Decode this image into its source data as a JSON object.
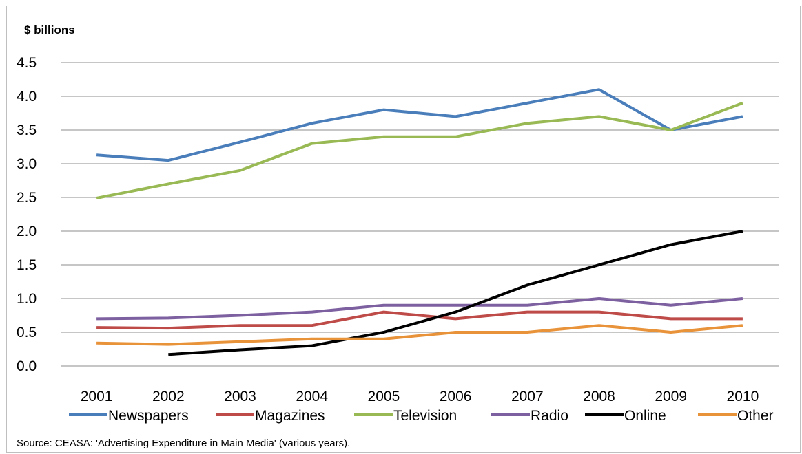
{
  "chart_data": {
    "type": "line",
    "ylabel": "$ billions",
    "ylim": [
      0,
      4.5
    ],
    "yticks": [
      "0.0",
      "0.5",
      "1.0",
      "1.5",
      "2.0",
      "2.5",
      "3.0",
      "3.5",
      "4.0",
      "4.5"
    ],
    "categories": [
      "2001",
      "2002",
      "2003",
      "2004",
      "2005",
      "2006",
      "2007",
      "2008",
      "2009",
      "2010"
    ],
    "grid": true,
    "legend_position": "bottom",
    "series": [
      {
        "name": "Newspapers",
        "color": "#4a7ebb",
        "values": [
          3.13,
          3.05,
          3.32,
          3.6,
          3.8,
          3.7,
          3.9,
          4.1,
          3.5,
          3.7
        ]
      },
      {
        "name": "Magazines",
        "color": "#be4b48",
        "values": [
          0.57,
          0.56,
          0.6,
          0.6,
          0.8,
          0.7,
          0.8,
          0.8,
          0.7,
          0.7
        ]
      },
      {
        "name": "Television",
        "color": "#98b954",
        "values": [
          2.49,
          2.7,
          2.9,
          3.3,
          3.4,
          3.4,
          3.6,
          3.7,
          3.5,
          3.9
        ]
      },
      {
        "name": "Radio",
        "color": "#7d60a0",
        "values": [
          0.7,
          0.71,
          0.75,
          0.8,
          0.9,
          0.9,
          0.9,
          1.0,
          0.9,
          1.0
        ]
      },
      {
        "name": "Online",
        "color": "#000000",
        "values": [
          null,
          0.17,
          0.24,
          0.3,
          0.5,
          0.8,
          1.2,
          1.5,
          1.8,
          2.0
        ]
      },
      {
        "name": "Other",
        "color": "#e8923a",
        "values": [
          0.34,
          0.32,
          0.36,
          0.4,
          0.4,
          0.5,
          0.5,
          0.6,
          0.5,
          0.6
        ]
      }
    ]
  },
  "source_note": "Source: CEASA: 'Advertising Expenditure in Main Media' (various years)."
}
